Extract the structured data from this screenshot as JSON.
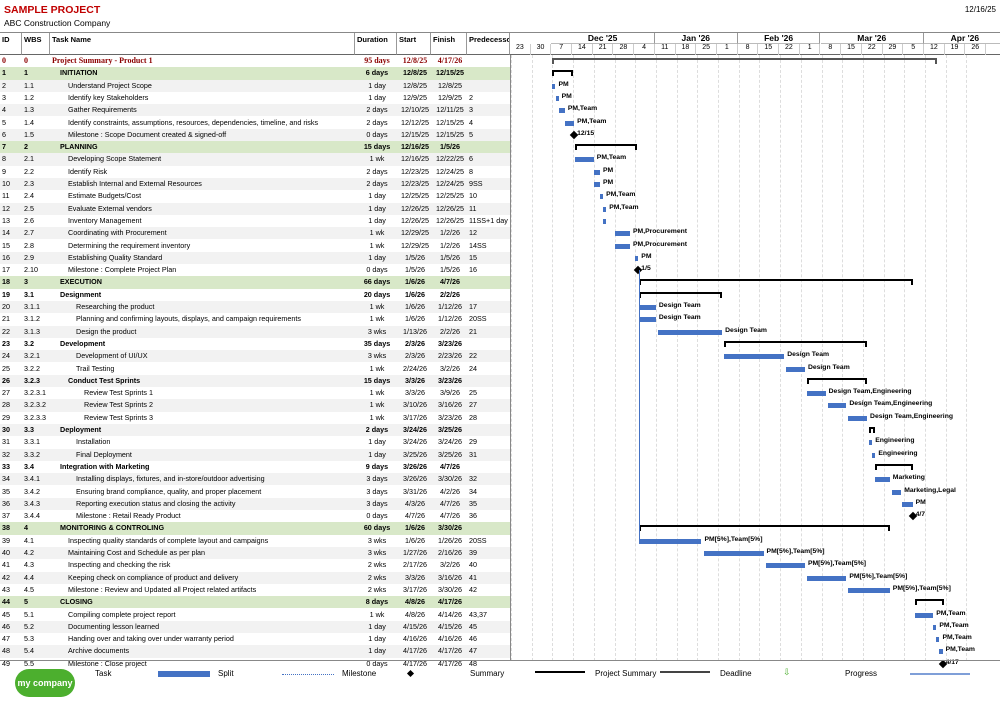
{
  "header": {
    "title": "SAMPLE PROJECT",
    "company": "ABC Construction Company",
    "date": "12/16/25"
  },
  "columns": {
    "id": "ID",
    "wbs": "WBS",
    "name": "Task Name",
    "duration": "Duration",
    "start": "Start",
    "finish": "Finish",
    "pred": "Predecesso"
  },
  "timeline": {
    "months": [
      {
        "label": "Dec '25",
        "start": 2,
        "span": 5
      },
      {
        "label": "Jan '26",
        "start": 7,
        "span": 4
      },
      {
        "label": "Feb '26",
        "start": 11,
        "span": 4
      },
      {
        "label": "Mar '26",
        "start": 15,
        "span": 5
      },
      {
        "label": "Apr '26",
        "start": 20,
        "span": 4
      }
    ],
    "weeks": [
      "23",
      "30",
      "7",
      "14",
      "21",
      "28",
      "4",
      "11",
      "18",
      "25",
      "1",
      "8",
      "15",
      "22",
      "1",
      "8",
      "15",
      "22",
      "29",
      "5",
      "12",
      "19",
      "26"
    ]
  },
  "tasks": [
    {
      "id": "0",
      "wbs": "0",
      "name": "Project Summary - Product 1",
      "dur": "95 days",
      "start": "12/8/25",
      "finish": "4/17/26",
      "pred": "",
      "type": "proj",
      "s": 2,
      "f": 20.6,
      "label": ""
    },
    {
      "id": "1",
      "wbs": "1",
      "name": "INITIATION",
      "dur": "6 days",
      "start": "12/8/25",
      "finish": "12/15/25",
      "pred": "",
      "type": "summ",
      "s": 2,
      "f": 3.0,
      "label": ""
    },
    {
      "id": "2",
      "wbs": "1.1",
      "name": "Understand Project Scope",
      "dur": "1 day",
      "start": "12/8/25",
      "finish": "12/8/25",
      "pred": "",
      "type": "task",
      "ind": 2,
      "s": 2,
      "f": 2.15,
      "label": "PM"
    },
    {
      "id": "3",
      "wbs": "1.2",
      "name": "Identify key Stakeholders",
      "dur": "1 day",
      "start": "12/9/25",
      "finish": "12/9/25",
      "pred": "2",
      "type": "task",
      "ind": 2,
      "s": 2.15,
      "f": 2.3,
      "label": "PM"
    },
    {
      "id": "4",
      "wbs": "1.3",
      "name": "Gather Requirements",
      "dur": "2 days",
      "start": "12/10/25",
      "finish": "12/11/25",
      "pred": "3",
      "type": "task",
      "ind": 2,
      "s": 2.3,
      "f": 2.6,
      "label": "PM,Team"
    },
    {
      "id": "5",
      "wbs": "1.4",
      "name": "Identify constraints, assumptions, resources, dependencies, timeline, and risks",
      "dur": "2 days",
      "start": "12/12/25",
      "finish": "12/15/25",
      "pred": "4",
      "type": "task",
      "ind": 2,
      "s": 2.6,
      "f": 3.05,
      "label": "PM,Team"
    },
    {
      "id": "6",
      "wbs": "1.5",
      "name": "Milestone : Scope Document created & signed-off",
      "dur": "0 days",
      "start": "12/15/25",
      "finish": "12/15/25",
      "pred": "5",
      "type": "ms",
      "ind": 2,
      "s": 3.05,
      "f": 3.05,
      "label": "12/15"
    },
    {
      "id": "7",
      "wbs": "2",
      "name": "PLANNING",
      "dur": "15 days",
      "start": "12/16/25",
      "finish": "1/5/26",
      "pred": "",
      "type": "summ",
      "s": 3.1,
      "f": 6.1,
      "label": ""
    },
    {
      "id": "8",
      "wbs": "2.1",
      "name": "Developing Scope Statement",
      "dur": "1 wk",
      "start": "12/16/25",
      "finish": "12/22/25",
      "pred": "6",
      "type": "task",
      "ind": 2,
      "s": 3.1,
      "f": 4.0,
      "label": "PM,Team"
    },
    {
      "id": "9",
      "wbs": "2.2",
      "name": "Identify Risk",
      "dur": "2 days",
      "start": "12/23/25",
      "finish": "12/24/25",
      "pred": "8",
      "type": "task",
      "ind": 2,
      "s": 4.0,
      "f": 4.3,
      "label": "PM"
    },
    {
      "id": "10",
      "wbs": "2.3",
      "name": "Establish Internal and External Resources",
      "dur": "2 days",
      "start": "12/23/25",
      "finish": "12/24/25",
      "pred": "9SS",
      "type": "task",
      "ind": 2,
      "s": 4.0,
      "f": 4.3,
      "label": "PM"
    },
    {
      "id": "11",
      "wbs": "2.4",
      "name": "Estimate Budgets/Cost",
      "dur": "1 day",
      "start": "12/25/25",
      "finish": "12/25/25",
      "pred": "10",
      "type": "task",
      "ind": 2,
      "s": 4.3,
      "f": 4.45,
      "label": "PM,Team"
    },
    {
      "id": "12",
      "wbs": "2.5",
      "name": "Evaluate External vendors",
      "dur": "1 day",
      "start": "12/26/25",
      "finish": "12/26/25",
      "pred": "11",
      "type": "task",
      "ind": 2,
      "s": 4.45,
      "f": 4.6,
      "label": "PM,Team"
    },
    {
      "id": "13",
      "wbs": "2.6",
      "name": "Inventory Management",
      "dur": "1 day",
      "start": "12/26/25",
      "finish": "12/26/25",
      "pred": "11SS+1 day",
      "type": "task",
      "ind": 2,
      "s": 4.45,
      "f": 4.6,
      "label": ""
    },
    {
      "id": "14",
      "wbs": "2.7",
      "name": "Coordinating with Procurement",
      "dur": "1 wk",
      "start": "12/29/25",
      "finish": "1/2/26",
      "pred": "12",
      "type": "task",
      "ind": 2,
      "s": 5.0,
      "f": 5.75,
      "label": "PM,Procurement"
    },
    {
      "id": "15",
      "wbs": "2.8",
      "name": "Determining the requirement inventory",
      "dur": "1 wk",
      "start": "12/29/25",
      "finish": "1/2/26",
      "pred": "14SS",
      "type": "task",
      "ind": 2,
      "s": 5.0,
      "f": 5.75,
      "label": "PM,Procurement"
    },
    {
      "id": "16",
      "wbs": "2.9",
      "name": "Establishing Quality Standard",
      "dur": "1 day",
      "start": "1/5/26",
      "finish": "1/5/26",
      "pred": "15",
      "type": "task",
      "ind": 2,
      "s": 6.0,
      "f": 6.15,
      "label": "PM"
    },
    {
      "id": "17",
      "wbs": "2.10",
      "name": "Milestone : Complete Project Plan",
      "dur": "0 days",
      "start": "1/5/26",
      "finish": "1/5/26",
      "pred": "16",
      "type": "ms",
      "ind": 2,
      "s": 6.15,
      "f": 6.15,
      "label": "1/5"
    },
    {
      "id": "18",
      "wbs": "3",
      "name": "EXECUTION",
      "dur": "66 days",
      "start": "1/6/26",
      "finish": "4/7/26",
      "pred": "",
      "type": "summ",
      "s": 6.2,
      "f": 19.4,
      "label": ""
    },
    {
      "id": "19",
      "wbs": "3.1",
      "name": "Designment",
      "dur": "20 days",
      "start": "1/6/26",
      "finish": "2/2/26",
      "pred": "",
      "type": "summ2",
      "ind": 1,
      "s": 6.2,
      "f": 10.2,
      "label": ""
    },
    {
      "id": "20",
      "wbs": "3.1.1",
      "name": "Researching the product",
      "dur": "1 wk",
      "start": "1/6/26",
      "finish": "1/12/26",
      "pred": "17",
      "type": "task",
      "ind": 3,
      "s": 6.2,
      "f": 7.0,
      "label": "Design Team"
    },
    {
      "id": "21",
      "wbs": "3.1.2",
      "name": "Planning and confirming layouts, displays, and campaign requirements",
      "dur": "1 wk",
      "start": "1/6/26",
      "finish": "1/12/26",
      "pred": "20SS",
      "type": "task",
      "ind": 3,
      "s": 6.2,
      "f": 7.0,
      "label": "Design Team"
    },
    {
      "id": "22",
      "wbs": "3.1.3",
      "name": "Design the product",
      "dur": "3 wks",
      "start": "1/13/26",
      "finish": "2/2/26",
      "pred": "21",
      "type": "task",
      "ind": 3,
      "s": 7.1,
      "f": 10.2,
      "label": "Design Team"
    },
    {
      "id": "23",
      "wbs": "3.2",
      "name": "Development",
      "dur": "35 days",
      "start": "2/3/26",
      "finish": "3/23/26",
      "pred": "",
      "type": "summ2",
      "ind": 1,
      "s": 10.3,
      "f": 17.2,
      "label": ""
    },
    {
      "id": "24",
      "wbs": "3.2.1",
      "name": "Development of UI/UX",
      "dur": "3 wks",
      "start": "2/3/26",
      "finish": "2/23/26",
      "pred": "22",
      "type": "task",
      "ind": 3,
      "s": 10.3,
      "f": 13.2,
      "label": "Design Team"
    },
    {
      "id": "25",
      "wbs": "3.2.2",
      "name": "Trail Testing",
      "dur": "1 wk",
      "start": "2/24/26",
      "finish": "3/2/26",
      "pred": "24",
      "type": "task",
      "ind": 3,
      "s": 13.3,
      "f": 14.2,
      "label": "Design Team"
    },
    {
      "id": "26",
      "wbs": "3.2.3",
      "name": "Conduct  Test Sprints",
      "dur": "15 days",
      "start": "3/3/26",
      "finish": "3/23/26",
      "pred": "",
      "type": "summ2",
      "ind": 2,
      "s": 14.3,
      "f": 17.2,
      "label": ""
    },
    {
      "id": "27",
      "wbs": "3.2.3.1",
      "name": "Review Test Sprints 1",
      "dur": "1 wk",
      "start": "3/3/26",
      "finish": "3/9/26",
      "pred": "25",
      "type": "task",
      "ind": 4,
      "s": 14.3,
      "f": 15.2,
      "label": "Design Team,Engineering"
    },
    {
      "id": "28",
      "wbs": "3.2.3.2",
      "name": "Review Test Sprints 2",
      "dur": "1 wk",
      "start": "3/10/26",
      "finish": "3/16/26",
      "pred": "27",
      "type": "task",
      "ind": 4,
      "s": 15.3,
      "f": 16.2,
      "label": "Design Team,Engineering"
    },
    {
      "id": "29",
      "wbs": "3.2.3.3",
      "name": "Review Test Sprints 3",
      "dur": "1 wk",
      "start": "3/17/26",
      "finish": "3/23/26",
      "pred": "28",
      "type": "task",
      "ind": 4,
      "s": 16.3,
      "f": 17.2,
      "label": "Design Team,Engineering"
    },
    {
      "id": "30",
      "wbs": "3.3",
      "name": "Deployment",
      "dur": "2 days",
      "start": "3/24/26",
      "finish": "3/25/26",
      "pred": "",
      "type": "summ2",
      "ind": 1,
      "s": 17.3,
      "f": 17.6,
      "label": ""
    },
    {
      "id": "31",
      "wbs": "3.3.1",
      "name": "Installation",
      "dur": "1 day",
      "start": "3/24/26",
      "finish": "3/24/26",
      "pred": "29",
      "type": "task",
      "ind": 3,
      "s": 17.3,
      "f": 17.45,
      "label": "Engineering"
    },
    {
      "id": "32",
      "wbs": "3.3.2",
      "name": "Final Deployment",
      "dur": "1 day",
      "start": "3/25/26",
      "finish": "3/25/26",
      "pred": "31",
      "type": "task",
      "ind": 3,
      "s": 17.45,
      "f": 17.6,
      "label": "Engineering"
    },
    {
      "id": "33",
      "wbs": "3.4",
      "name": "Integration with Marketing",
      "dur": "9 days",
      "start": "3/26/26",
      "finish": "4/7/26",
      "pred": "",
      "type": "summ2",
      "ind": 1,
      "s": 17.6,
      "f": 19.4,
      "label": ""
    },
    {
      "id": "34",
      "wbs": "3.4.1",
      "name": "Installing displays, fixtures, and in-store/outdoor advertising",
      "dur": "3 days",
      "start": "3/26/26",
      "finish": "3/30/26",
      "pred": "32",
      "type": "task",
      "ind": 3,
      "s": 17.6,
      "f": 18.3,
      "label": "Marketing"
    },
    {
      "id": "35",
      "wbs": "3.4.2",
      "name": "Ensuring brand compliance, quality, and proper placement",
      "dur": "3 days",
      "start": "3/31/26",
      "finish": "4/2/26",
      "pred": "34",
      "type": "task",
      "ind": 3,
      "s": 18.4,
      "f": 18.85,
      "label": "Marketing,Legal"
    },
    {
      "id": "36",
      "wbs": "3.4.3",
      "name": "Reporting execution status and closing the activity",
      "dur": "3 days",
      "start": "4/3/26",
      "finish": "4/7/26",
      "pred": "35",
      "type": "task",
      "ind": 3,
      "s": 18.9,
      "f": 19.4,
      "label": "PM"
    },
    {
      "id": "37",
      "wbs": "3.4.4",
      "name": "Milestone : Retail Ready Product",
      "dur": "0 days",
      "start": "4/7/26",
      "finish": "4/7/26",
      "pred": "36",
      "type": "ms",
      "ind": 3,
      "s": 19.4,
      "f": 19.4,
      "label": "4/7"
    },
    {
      "id": "38",
      "wbs": "4",
      "name": "MONITORING & CONTROLING",
      "dur": "60 days",
      "start": "1/6/26",
      "finish": "3/30/26",
      "pred": "",
      "type": "summ",
      "s": 6.2,
      "f": 18.3,
      "label": ""
    },
    {
      "id": "39",
      "wbs": "4.1",
      "name": "Inspecting quality standards of complete layout and campaigns",
      "dur": "3 wks",
      "start": "1/6/26",
      "finish": "1/26/26",
      "pred": "20SS",
      "type": "task",
      "ind": 2,
      "s": 6.2,
      "f": 9.2,
      "label": "PM[5%],Team[5%]"
    },
    {
      "id": "40",
      "wbs": "4.2",
      "name": "Maintaining Cost and Schedule as per plan",
      "dur": "3 wks",
      "start": "1/27/26",
      "finish": "2/16/26",
      "pred": "39",
      "type": "task",
      "ind": 2,
      "s": 9.3,
      "f": 12.2,
      "label": "PM[5%],Team[5%]"
    },
    {
      "id": "41",
      "wbs": "4.3",
      "name": "Inspecting and checking the risk",
      "dur": "2 wks",
      "start": "2/17/26",
      "finish": "3/2/26",
      "pred": "40",
      "type": "task",
      "ind": 2,
      "s": 12.3,
      "f": 14.2,
      "label": "PM[5%],Team[5%]"
    },
    {
      "id": "42",
      "wbs": "4.4",
      "name": "Keeping check on compliance of product and delivery",
      "dur": "2 wks",
      "start": "3/3/26",
      "finish": "3/16/26",
      "pred": "41",
      "type": "task",
      "ind": 2,
      "s": 14.3,
      "f": 16.2,
      "label": "PM[5%],Team[5%]"
    },
    {
      "id": "43",
      "wbs": "4.5",
      "name": "Milestone : Review and Updated all Project related artifacts",
      "dur": "2 wks",
      "start": "3/17/26",
      "finish": "3/30/26",
      "pred": "42",
      "type": "task",
      "ind": 2,
      "s": 16.3,
      "f": 18.3,
      "label": "PM[5%],Team[5%]"
    },
    {
      "id": "44",
      "wbs": "5",
      "name": "CLOSING",
      "dur": "8 days",
      "start": "4/8/26",
      "finish": "4/17/26",
      "pred": "",
      "type": "summ",
      "s": 19.5,
      "f": 20.9,
      "label": ""
    },
    {
      "id": "45",
      "wbs": "5.1",
      "name": "Compiling complete project report",
      "dur": "1 wk",
      "start": "4/8/26",
      "finish": "4/14/26",
      "pred": "43,37",
      "type": "task",
      "ind": 2,
      "s": 19.5,
      "f": 20.4,
      "label": "PM,Team"
    },
    {
      "id": "46",
      "wbs": "5.2",
      "name": "Documenting lesson learned",
      "dur": "1 day",
      "start": "4/15/26",
      "finish": "4/15/26",
      "pred": "45",
      "type": "task",
      "ind": 2,
      "s": 20.4,
      "f": 20.55,
      "label": "PM,Team"
    },
    {
      "id": "47",
      "wbs": "5.3",
      "name": "Handing over and taking over under warranty period",
      "dur": "1 day",
      "start": "4/16/26",
      "finish": "4/16/26",
      "pred": "46",
      "type": "task",
      "ind": 2,
      "s": 20.55,
      "f": 20.7,
      "label": "PM,Team"
    },
    {
      "id": "48",
      "wbs": "5.4",
      "name": "Archive documents",
      "dur": "1 day",
      "start": "4/17/26",
      "finish": "4/17/26",
      "pred": "47",
      "type": "task",
      "ind": 2,
      "s": 20.7,
      "f": 20.85,
      "label": "PM,Team"
    },
    {
      "id": "49",
      "wbs": "5.5",
      "name": "Milestone : Close project",
      "dur": "0 days",
      "start": "4/17/26",
      "finish": "4/17/26",
      "pred": "48",
      "type": "ms",
      "ind": 2,
      "s": 20.85,
      "f": 20.85,
      "label": "4/17"
    }
  ],
  "legend": {
    "logo": "my company",
    "task": "Task",
    "split": "Split",
    "milestone": "Milestone",
    "summary": "Summary",
    "project_summary": "Project Summary",
    "deadline": "Deadline",
    "progress": "Progress"
  },
  "colors": {
    "bar": "#4472c4",
    "summary_row": "#d8e8c8",
    "title": "#c00000"
  }
}
